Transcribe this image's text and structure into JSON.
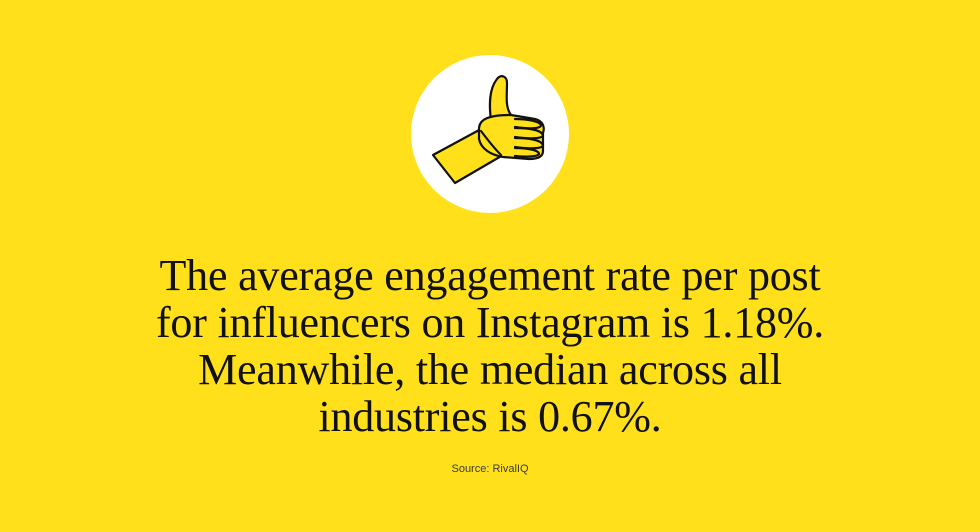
{
  "background_color": "#FFE01B",
  "badge": {
    "icon": "thumbs-up-icon",
    "circle_color": "#FFFFFF",
    "hand_color": "#FFE01B",
    "outline_color": "#111111"
  },
  "headline": {
    "lines": [
      "The average engagement rate per post",
      "for influencers on Instagram is 1.18%.",
      "Meanwhile, the median across all",
      "industries is 0.67%."
    ]
  },
  "source": {
    "text": "Source: RivalIQ"
  }
}
